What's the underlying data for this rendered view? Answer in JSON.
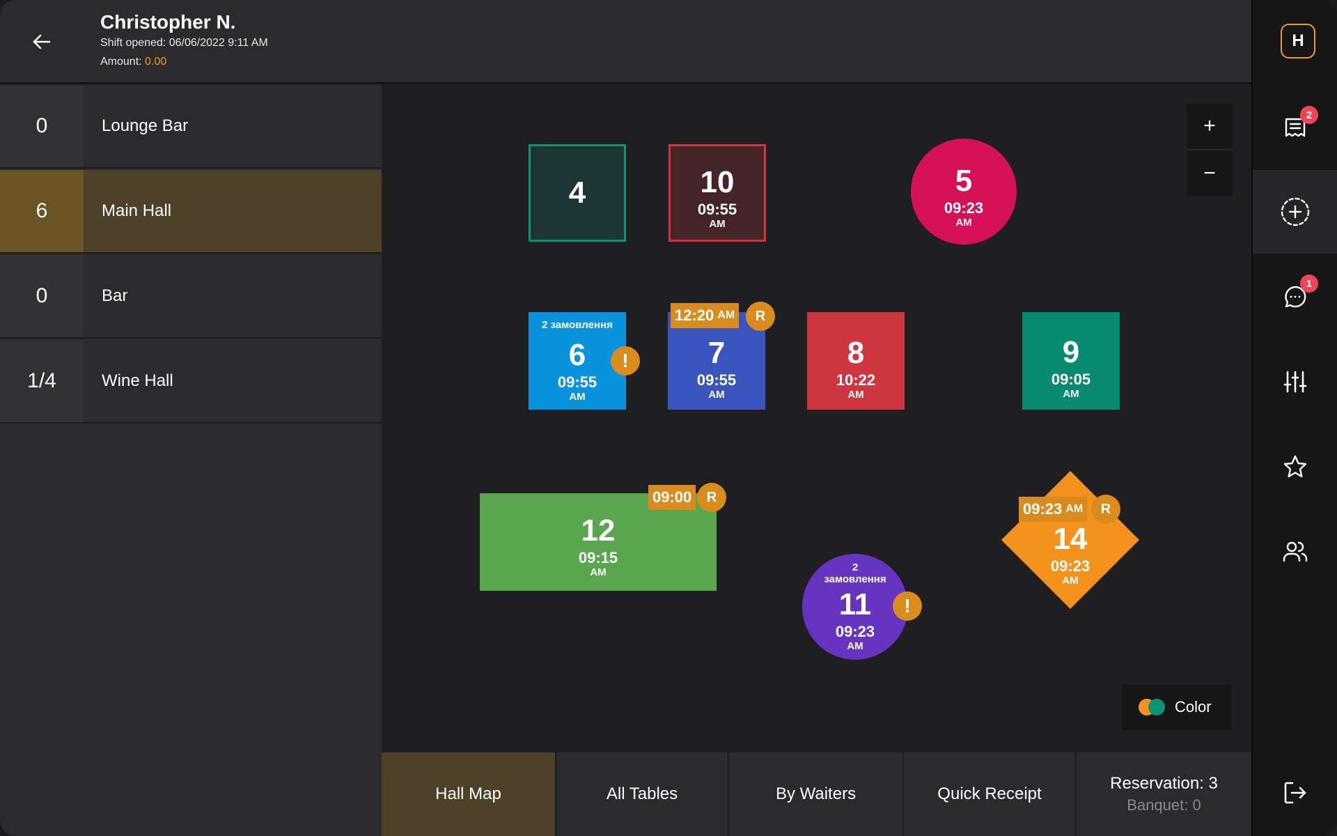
{
  "header": {
    "user_name": "Christopher N.",
    "shift_opened": "Shift opened: 06/06/2022 9:11 AM",
    "amount_label": "Amount: ",
    "amount_value": "0.00"
  },
  "halls": [
    {
      "count": "0",
      "name": "Lounge Bar"
    },
    {
      "count": "6",
      "name": "Main Hall"
    },
    {
      "count": "0",
      "name": "Bar"
    },
    {
      "count": "1/4",
      "name": "Wine Hall"
    }
  ],
  "tables": {
    "t4": {
      "number": "4"
    },
    "t10": {
      "number": "10",
      "time": "09:55",
      "ampm": "AM"
    },
    "t5": {
      "number": "5",
      "time": "09:23",
      "ampm": "AM"
    },
    "t6": {
      "orders": "2 замовлення",
      "number": "6",
      "time": "09:55",
      "ampm": "AM",
      "alert": "!"
    },
    "t7": {
      "reservation_time": "12:20",
      "reservation_ampm": "AM",
      "reservation_mark": "R",
      "number": "7",
      "time": "09:55",
      "ampm": "AM"
    },
    "t8": {
      "number": "8",
      "time": "10:22",
      "ampm": "AM"
    },
    "t9": {
      "number": "9",
      "time": "09:05",
      "ampm": "AM"
    },
    "t12": {
      "reservation_time": "09:00",
      "reservation_mark": "R",
      "number": "12",
      "time": "09:15",
      "ampm": "AM"
    },
    "t11": {
      "orders_line1": "2",
      "orders_line2": "замовлення",
      "number": "11",
      "time": "09:23",
      "ampm": "AM",
      "alert": "!"
    },
    "t14": {
      "reservation_time": "09:23",
      "reservation_ampm": "AM",
      "reservation_mark": "R",
      "number": "14",
      "time": "09:23",
      "ampm": "AM"
    }
  },
  "zoom": {
    "in": "+",
    "out": "−"
  },
  "color_button": {
    "label": "Color"
  },
  "tabs": {
    "hall_map": "Hall Map",
    "all_tables": "All Tables",
    "by_waiters": "By Waiters",
    "quick_receipt": "Quick Receipt",
    "reservation": "Reservation: 3",
    "banquet": "Banquet: 0"
  },
  "rail": {
    "logo": "H",
    "receipts_badge": "2",
    "messages_badge": "1"
  },
  "colors": {
    "accent": "#f39a1f",
    "active_bg": "#4d412a",
    "table_teal_dark": "#1c3634",
    "table_maroon": "#452428",
    "table_magenta": "#d61157",
    "table_blue": "#0893dc",
    "table_indigo": "#3b55bf",
    "table_red": "#d0363f",
    "table_teal": "#078a6f",
    "table_green": "#5aa64e",
    "table_purple": "#6634c0",
    "table_orange": "#f3931e",
    "badge": "#d98b1e",
    "notification": "#ef4456"
  }
}
